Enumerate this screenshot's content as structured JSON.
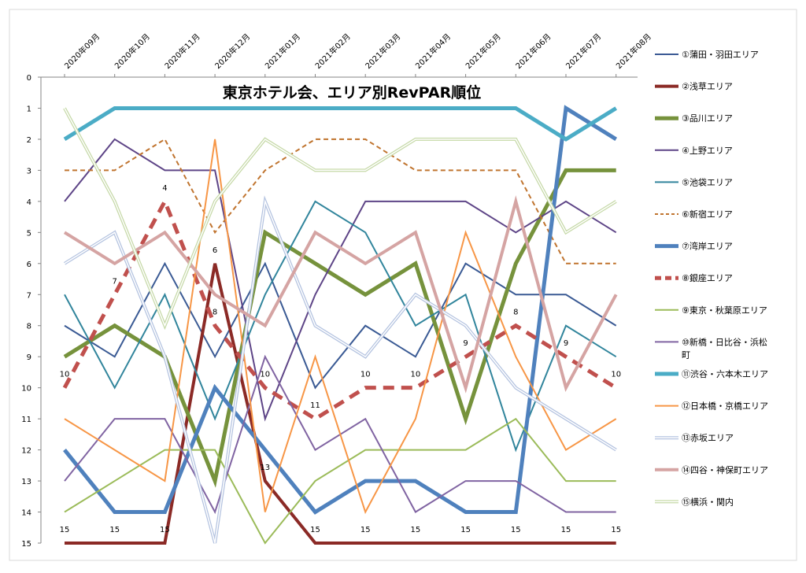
{
  "chart_data": {
    "type": "line",
    "title": "東京ホテル会、エリア別RevPAR順位",
    "xlabel": "",
    "ylabel": "",
    "categories": [
      "2020年09月",
      "2020年10月",
      "2020年11月",
      "2020年12月",
      "2021年01月",
      "2021年02月",
      "2021年03月",
      "2021年04月",
      "2021年05月",
      "2021年06月",
      "2021年07月",
      "2021年08月"
    ],
    "yticks": [
      "0",
      "1",
      "2",
      "3",
      "4",
      "5",
      "6",
      "7",
      "8",
      "9",
      "10",
      "11",
      "12",
      "13",
      "14",
      "15"
    ],
    "ylim": [
      0,
      15
    ],
    "y_reversed": true,
    "grid": false,
    "legend_position": "right",
    "series": [
      {
        "name": "①蒲田・羽田エリア",
        "color": "#3A5A94",
        "width": 2,
        "style": "solid",
        "values": [
          8,
          9,
          6,
          9,
          6,
          10,
          8,
          9,
          6,
          7,
          7,
          8
        ]
      },
      {
        "name": "②浅草エリア",
        "color": "#8B2A26",
        "width": 4,
        "style": "solid",
        "values": [
          15,
          15,
          15,
          6,
          13,
          15,
          15,
          15,
          15,
          15,
          15,
          15
        ]
      },
      {
        "name": "③品川エリア",
        "color": "#76923C",
        "width": 5,
        "style": "solid",
        "values": [
          9,
          8,
          9,
          13,
          5,
          6,
          7,
          6,
          11,
          6,
          3,
          3
        ]
      },
      {
        "name": "④上野エリア",
        "color": "#5E4587",
        "width": 2,
        "style": "solid",
        "values": [
          4,
          2,
          3,
          3,
          11,
          7,
          4,
          4,
          4,
          5,
          4,
          5
        ]
      },
      {
        "name": "⑤池袋エリア",
        "color": "#31859C",
        "width": 2,
        "style": "solid",
        "values": [
          7,
          10,
          7,
          11,
          7,
          4,
          5,
          8,
          7,
          12,
          8,
          9
        ]
      },
      {
        "name": "⑥新宿エリア",
        "color": "#C0742F",
        "width": 2,
        "style": "dash",
        "values": [
          3,
          3,
          2,
          5,
          3,
          2,
          2,
          3,
          3,
          3,
          6,
          6
        ]
      },
      {
        "name": "⑦湾岸エリア",
        "color": "#4F81BD",
        "width": 5,
        "style": "solid",
        "values": [
          12,
          14,
          14,
          10,
          12,
          14,
          13,
          13,
          14,
          14,
          1,
          2
        ]
      },
      {
        "name": "⑧銀座エリア",
        "color": "#C0504D",
        "width": 5,
        "style": "dash",
        "values": [
          10,
          7,
          4,
          8,
          10,
          11,
          10,
          10,
          9,
          8,
          9,
          10
        ],
        "labels": [
          "10",
          "7",
          "4",
          "8",
          "10",
          "11",
          "10",
          "10",
          "9",
          "8",
          "9",
          "10"
        ]
      },
      {
        "name": "⑨東京・秋葉原エリア",
        "color": "#9BBB59",
        "width": 2,
        "style": "solid",
        "values": [
          14,
          13,
          12,
          12,
          15,
          13,
          12,
          12,
          12,
          11,
          13,
          13
        ]
      },
      {
        "name": "⑩新橋・日比谷・浜松町",
        "color": "#8064A2",
        "width": 2,
        "style": "solid",
        "values": [
          13,
          11,
          11,
          14,
          9,
          12,
          11,
          14,
          13,
          13,
          14,
          14
        ]
      },
      {
        "name": "⑪渋谷・六本木エリア",
        "color": "#4BACC6",
        "width": 5,
        "style": "solid",
        "values": [
          2,
          1,
          1,
          1,
          1,
          1,
          1,
          1,
          1,
          1,
          2,
          1
        ]
      },
      {
        "name": "⑫日本橋・京橋エリア",
        "color": "#F79646",
        "width": 2,
        "style": "solid",
        "values": [
          11,
          12,
          13,
          2,
          14,
          9,
          14,
          11,
          5,
          9,
          12,
          11
        ]
      },
      {
        "name": "⑬赤坂エリア",
        "color": "#B4C3E0",
        "width": 2,
        "style": "double",
        "values": [
          6,
          5,
          9,
          15,
          4,
          8,
          9,
          7,
          8,
          10,
          11,
          12
        ]
      },
      {
        "name": "⑭四谷・神保町エリア",
        "color": "#D5A4A3",
        "width": 4,
        "style": "solid",
        "values": [
          5,
          6,
          5,
          7,
          8,
          5,
          6,
          5,
          10,
          4,
          10,
          7
        ]
      },
      {
        "name": "⑮横浜・関内",
        "color": "#C6D9A8",
        "width": 2,
        "style": "double",
        "values": [
          1,
          4,
          8,
          4,
          2,
          3,
          3,
          2,
          2,
          2,
          5,
          4
        ]
      }
    ],
    "bottom_labels": [
      "15",
      "15",
      "15",
      "",
      "",
      "15",
      "15",
      "15",
      "15",
      "15",
      "15",
      "15"
    ],
    "extra_labels": [
      {
        "category_index": 3,
        "value": 6,
        "text": "6"
      },
      {
        "category_index": 4,
        "value": 13,
        "text": "13"
      }
    ]
  }
}
